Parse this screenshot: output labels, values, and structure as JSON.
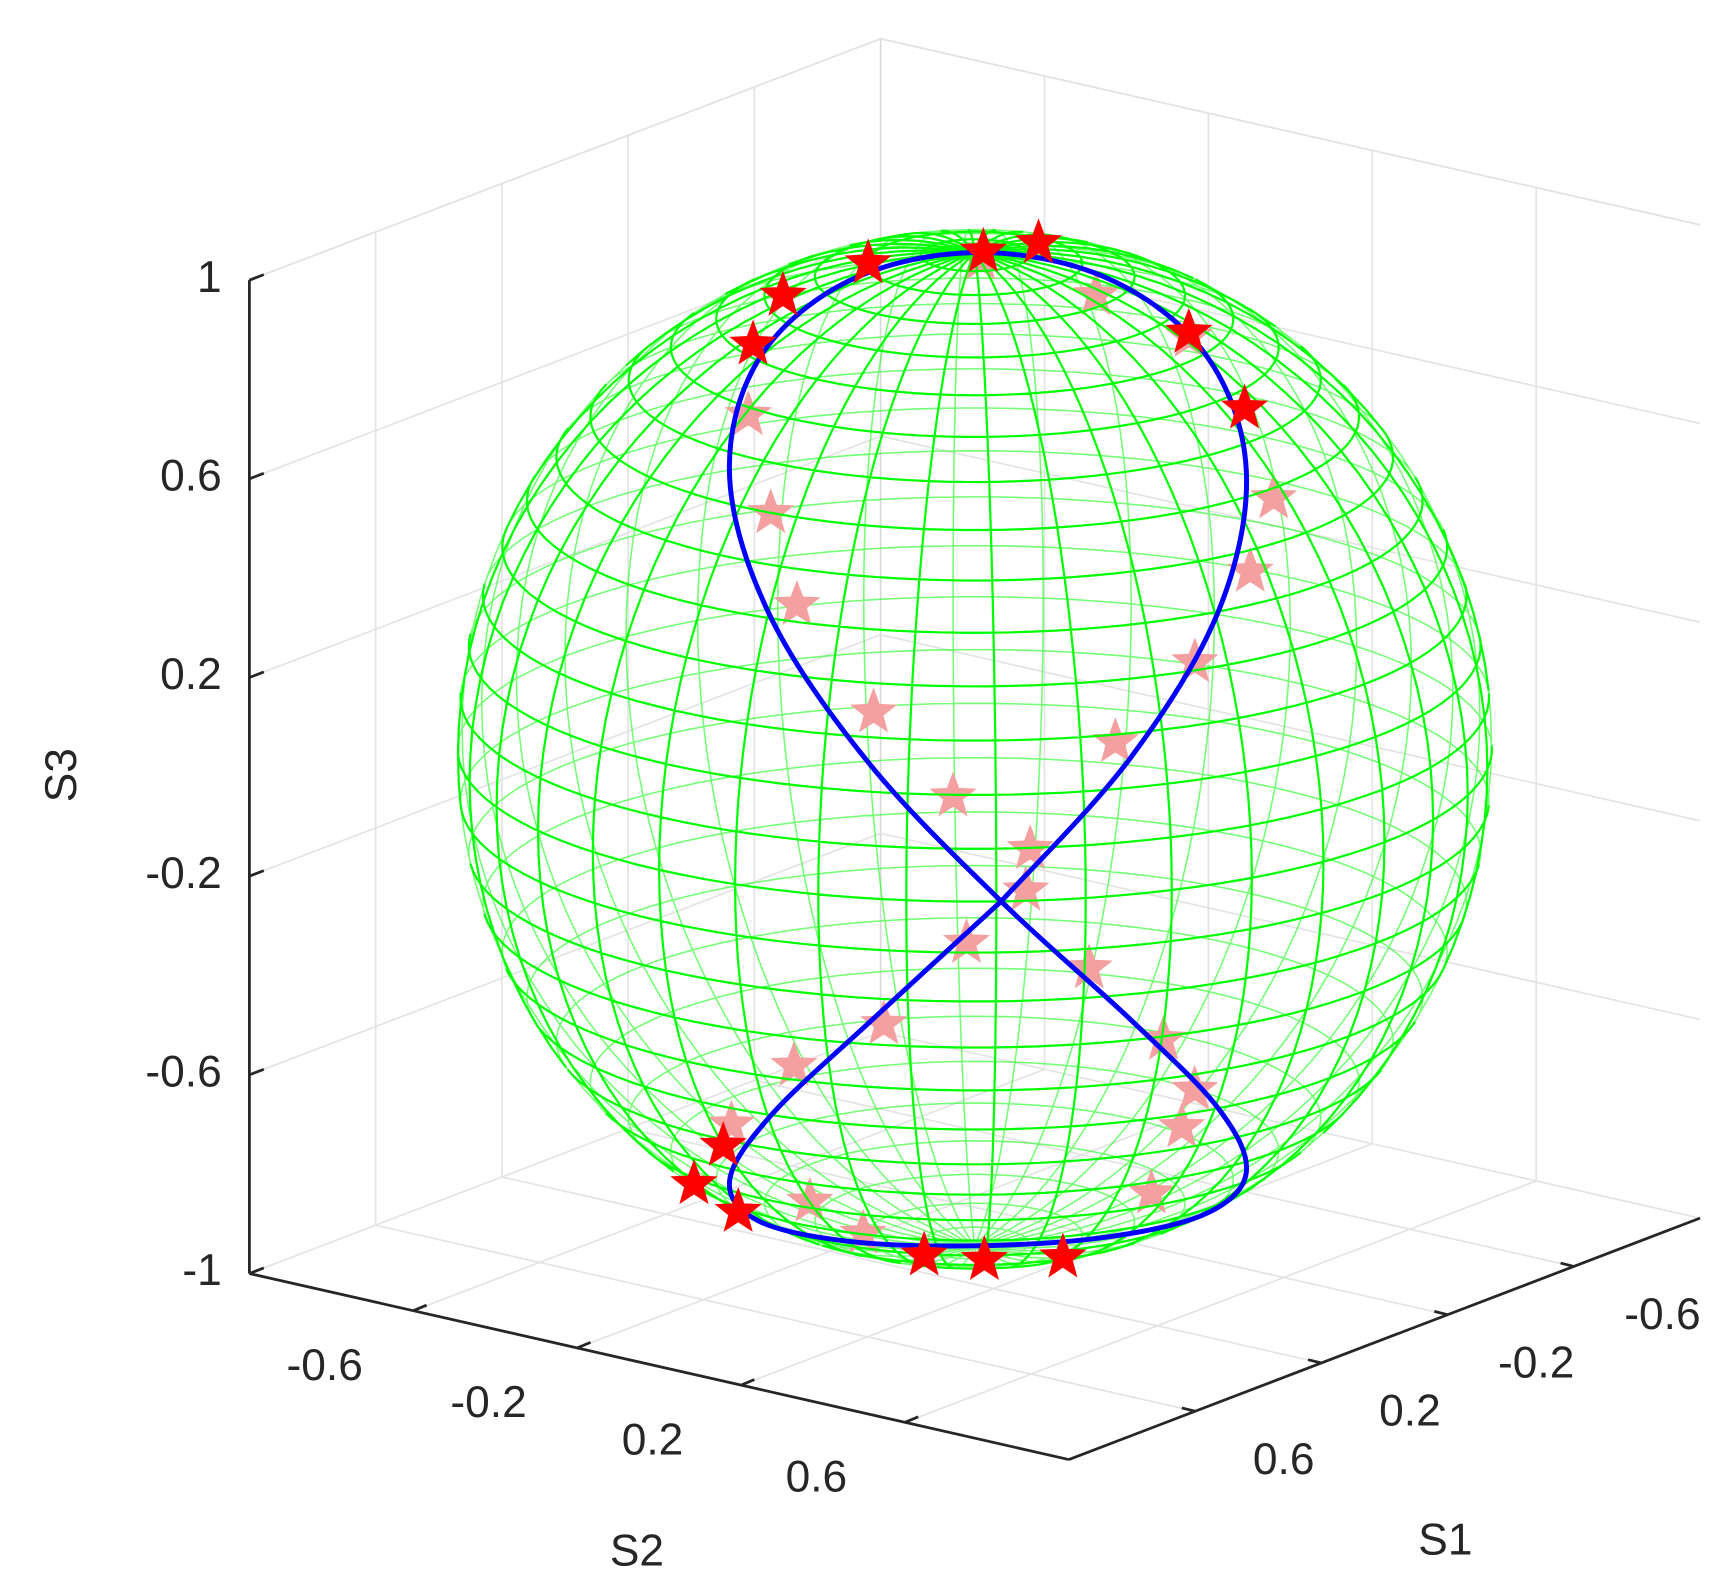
{
  "chart_data": {
    "type": "scatter3",
    "xlabel": "S1",
    "ylabel": "S2",
    "zlabel": "S3",
    "xlim": [
      -1,
      1
    ],
    "ylim": [
      -1,
      1
    ],
    "zlim": [
      -1,
      1
    ],
    "xticks": [
      -0.6,
      -0.2,
      0.2,
      0.6
    ],
    "yticks": [
      -0.6,
      -0.2,
      0.2,
      0.6
    ],
    "zticks": [
      -1,
      -0.6,
      -0.2,
      0.2,
      0.6,
      1
    ],
    "grid": true,
    "sphere_color": "#00ff00",
    "series": [
      {
        "type": "line",
        "color": "#0000ff",
        "x": [
          0.76,
          0.546,
          0.289,
          0.055,
          -0.091,
          -0.112,
          0,
          0.214,
          0.471,
          0.705,
          0.851,
          0.872,
          0.76,
          0.546,
          0.289,
          0.055,
          -0.091,
          -0.112,
          0,
          0.214,
          0.471,
          0.705,
          0.851,
          0.872,
          0.76
        ],
        "y": [
          0.65,
          0.796,
          0.817,
          0.705,
          0.492,
          0.234,
          0,
          -0.146,
          -0.166,
          -0.055,
          0.159,
          0.416,
          0.65,
          0.796,
          0.817,
          0.705,
          0.492,
          0.234,
          0,
          -0.146,
          -0.166,
          -0.055,
          0.159,
          0.416,
          0.65
        ],
        "z": [
          0,
          0.259,
          0.5,
          0.707,
          0.866,
          0.966,
          1,
          0.966,
          0.866,
          0.707,
          0.5,
          0.259,
          0,
          -0.259,
          -0.5,
          -0.707,
          -0.866,
          -0.966,
          -1,
          -0.966,
          -0.866,
          -0.707,
          -0.5,
          -0.259,
          0
        ]
      },
      {
        "type": "scatter",
        "color": "#f4a0a0",
        "x": [
          -0.36,
          -0.47,
          -0.54,
          -0.64,
          -0.71,
          -0.76,
          -0.72,
          -0.61,
          -0.4,
          -0.18,
          0.07,
          0.12,
          0.12,
          -0.3,
          -0.5,
          -0.58,
          -0.65,
          -0.7,
          -0.9,
          -0.97,
          -0.99,
          -0.96,
          -0.77,
          -0.67,
          -0.46
        ],
        "y": [
          -0.83,
          -0.86,
          -0.85,
          -0.74,
          -0.6,
          -0.45,
          -0.43,
          -0.49,
          -0.53,
          -0.58,
          -0.54,
          -0.31,
          -0.18,
          0.2,
          0.12,
          0.09,
          -0.04,
          -0.26,
          -0.35,
          -0.21,
          -0.09,
          -0.01,
          -0.07,
          -0.22,
          -0.34
        ],
        "z": [
          0.43,
          0.2,
          0,
          -0.22,
          -0.38,
          -0.47,
          -0.54,
          -0.63,
          -0.75,
          -0.79,
          -0.84,
          -0.94,
          -0.98,
          -0.93,
          -0.86,
          -0.81,
          -0.75,
          -0.66,
          -0.27,
          -0.1,
          0.1,
          0.27,
          0.63,
          0.71,
          0.81
        ]
      },
      {
        "type": "scatter",
        "color": "#ff0000",
        "x": [
          0.13,
          0.27,
          0.43,
          -0.12,
          -0.05,
          -0.15,
          -0.04,
          0.63,
          0.49,
          0.81,
          0.42,
          0.32,
          0.24
        ],
        "y": [
          -0.16,
          -0.26,
          -0.21,
          0.43,
          0.62,
          0.04,
          -0.01,
          -0.2,
          -0.2,
          0.01,
          0.2,
          0.27,
          0.4
        ],
        "z": [
          0.98,
          0.93,
          0.88,
          0.89,
          0.79,
          0.99,
          0.99,
          -0.76,
          -0.85,
          -0.6,
          -0.88,
          -0.9,
          -0.89
        ]
      }
    ]
  }
}
